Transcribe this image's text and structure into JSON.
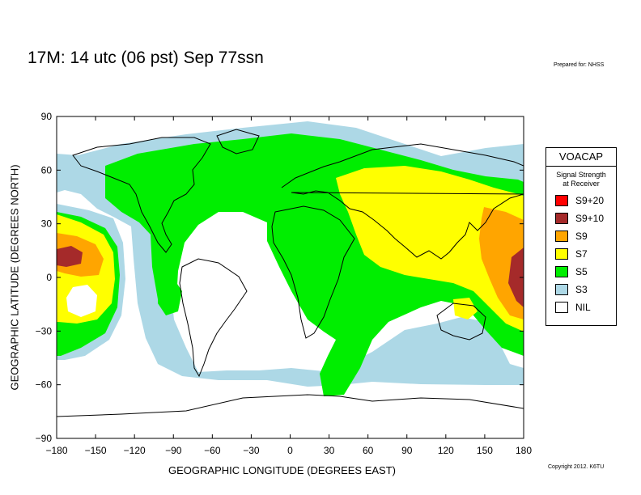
{
  "header": {
    "title": "17M:  14 utc (06 pst) Sep 77ssn",
    "prepared_for": "Prepared for: NHSS"
  },
  "footer": {
    "copyright": "Copyright 2012. K6TU"
  },
  "axes": {
    "x_label": "GEOGRAPHIC LONGITUDE (DEGREES EAST)",
    "y_label": "GEOGRAPHIC LATITUDE (DEGREES NORTH)",
    "x_range": [
      -180,
      180
    ],
    "y_range": [
      -90,
      90
    ],
    "x_ticks": [
      "−180",
      "−150",
      "−120",
      "−90",
      "−60",
      "−30",
      "0",
      "30",
      "60",
      "90",
      "120",
      "150",
      "180"
    ],
    "y_ticks": [
      "90",
      "60",
      "30",
      "0",
      "−30",
      "−60",
      "−90"
    ]
  },
  "legend": {
    "title": "VOACAP",
    "subtitle_line1": "Signal Strength",
    "subtitle_line2": "at Receiver",
    "items": [
      {
        "label": "S9+20",
        "color": "#ff0000"
      },
      {
        "label": "S9+10",
        "color": "#a52a2a"
      },
      {
        "label": "S9",
        "color": "#ffa500"
      },
      {
        "label": "S7",
        "color": "#ffff00"
      },
      {
        "label": "S5",
        "color": "#00ee00"
      },
      {
        "label": "S3",
        "color": "#add8e6"
      },
      {
        "label": "NIL",
        "color": "#ffffff"
      }
    ]
  }
}
